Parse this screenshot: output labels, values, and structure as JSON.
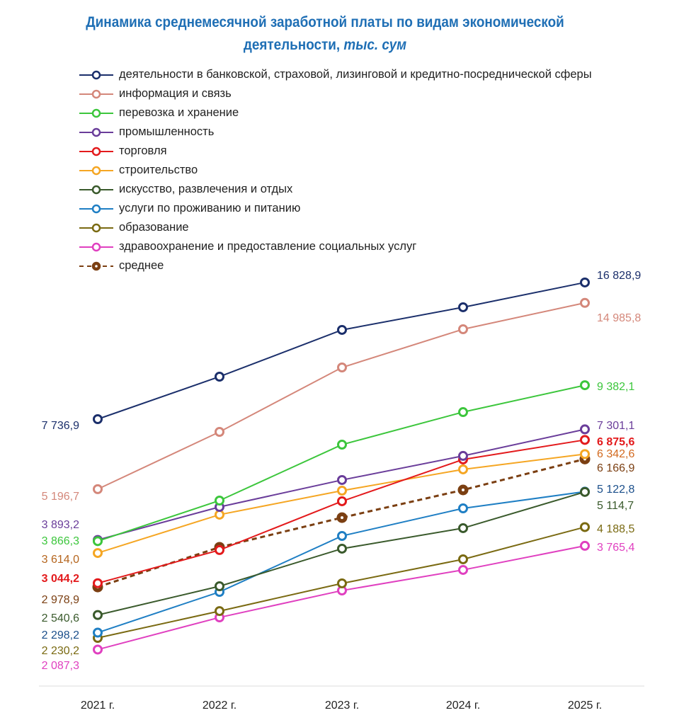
{
  "chart_data": {
    "type": "line",
    "title": "Динамика среднемесячной заработной платы по видам экономической",
    "title_line2": "деятельности,",
    "title_unit": "тыс. сум",
    "xlabel": "",
    "ylabel": "",
    "y_scale": "log",
    "grid": false,
    "legend_position": "top-left",
    "categories": [
      "2021 г.",
      "2022 г.",
      "2023 г.",
      "2024 г.",
      "2025 г."
    ],
    "series": [
      {
        "name": "деятельности в банковской, страховой, лизинговой и кредитно-посреднической сферы",
        "color": "#1b2f6b",
        "values": [
          7736.9,
          9851,
          12850,
          14617,
          16828.9
        ],
        "first_label": "7 736,9",
        "last_label": "16 828,9",
        "dashed": false
      },
      {
        "name": "информация и связь",
        "color": "#d4877a",
        "values": [
          5196.7,
          7196,
          10380,
          12900,
          14985.8
        ],
        "first_label": "5 196,7",
        "last_label": "14 985,8",
        "dashed": false
      },
      {
        "name": "перевозка и хранение",
        "color": "#3cc63c",
        "values": [
          3866.3,
          4870,
          6693,
          8054,
          9382.1
        ],
        "first_label": "3 866,3",
        "last_label": "9 382,1",
        "dashed": false
      },
      {
        "name": "промышленность",
        "color": "#6a3d9a",
        "values": [
          3893.2,
          4696,
          5474,
          6278,
          7301.1
        ],
        "first_label": "3 893,2",
        "last_label": "7 301,1",
        "dashed": false
      },
      {
        "name": "торговля",
        "color": "#e31a1c",
        "values": [
          3044.2,
          3675,
          4851,
          6151,
          6875.6
        ],
        "first_label": "3 044,2",
        "last_label": "6 875,6",
        "dashed": false
      },
      {
        "name": "строительство",
        "color": "#f5a623",
        "values": [
          3614.0,
          4494,
          5152,
          5814,
          6342.6
        ],
        "first_label": "3 614,0",
        "last_label": "6 342,6",
        "dashed": false
      },
      {
        "name": "искусство, развлечения и отдых",
        "color": "#3a5a2c",
        "values": [
          2540.6,
          2992,
          3704,
          4163,
          5114.7
        ],
        "first_label": "2 540,6",
        "last_label": "5 114,7",
        "dashed": false
      },
      {
        "name": "услуги по проживанию и питанию",
        "color": "#1f7fc4",
        "values": [
          2298.2,
          2897,
          3983,
          4659,
          5122.8
        ],
        "first_label": "2 298,2",
        "last_label": "5 122,8",
        "dashed": false
      },
      {
        "name": "образование",
        "color": "#7a6a12",
        "values": [
          2230.2,
          2598,
          3041,
          3487,
          4188.5
        ],
        "first_label": "2 230,2",
        "last_label": "4 188,5",
        "dashed": false
      },
      {
        "name": "здравоохранение и предоставление социальных услуг",
        "color": "#e040c0",
        "values": [
          2087.3,
          2506,
          2920,
          3283,
          3765.4
        ],
        "first_label": "2 087,3",
        "last_label": "3 765,4",
        "dashed": false
      },
      {
        "name": "среднее",
        "color": "#7b3f12",
        "values": [
          2978.9,
          3734,
          4420,
          5173,
          6166.9
        ],
        "first_label": "2 978,9",
        "last_label": "6 166,9",
        "dashed": true
      }
    ],
    "label_colors_first": [
      "#1b2f6b",
      "#d4877a",
      "#6a3d9a",
      "#3cc63c",
      "#b5651d",
      "#e31a1c",
      "#7b3f12",
      "#3a5a2c",
      "#1b4f8b",
      "#7a6a12",
      "#e040c0"
    ],
    "label_colors_last": [
      "#1b2f6b",
      "#d4877a",
      "#3cc63c",
      "#6a3d9a",
      "#e31a1c",
      "#d2691e",
      "#7b3f12",
      "#1b4f8b",
      "#3a5a2c",
      "#7a6a12",
      "#e040c0"
    ]
  }
}
